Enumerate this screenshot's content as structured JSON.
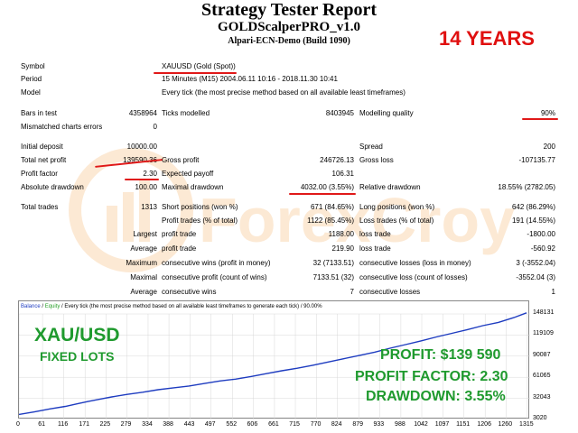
{
  "header": {
    "title": "Strategy Tester Report",
    "subtitle": "GOLDScalperPRO_v1.0",
    "server": "Alpari-ECN-Demo (Build 1090)",
    "badge": "14 YEARS"
  },
  "info": {
    "symbol_label": "Symbol",
    "symbol_value": "XAUUSD (Gold (Spot))",
    "period_label": "Period",
    "period_value": "15 Minutes (M15) 2004.06.11 10:16 - 2018.11.30 10:41",
    "model_label": "Model",
    "model_value": "Every tick (the most precise method based on all available least timeframes)"
  },
  "stats": {
    "bars_label": "Bars in test",
    "bars_value": "4358964",
    "ticks_label": "Ticks modelled",
    "ticks_value": "8403945",
    "quality_label": "Modelling quality",
    "quality_value": "90%",
    "mismatch_label": "Mismatched charts errors",
    "mismatch_value": "0",
    "deposit_label": "Initial deposit",
    "deposit_value": "10000.00",
    "spread_label": "Spread",
    "spread_value": "200",
    "net_label": "Total net profit",
    "net_value": "139590.36",
    "gross_profit_label": "Gross profit",
    "gross_profit_value": "246726.13",
    "gross_loss_label": "Gross loss",
    "gross_loss_value": "-107135.77",
    "pf_label": "Profit factor",
    "pf_value": "2.30",
    "payoff_label": "Expected payoff",
    "payoff_value": "106.31",
    "abs_dd_label": "Absolute drawdown",
    "abs_dd_value": "100.00",
    "max_dd_label": "Maximal drawdown",
    "max_dd_value": "4032.00 (3.55%)",
    "rel_dd_label": "Relative drawdown",
    "rel_dd_value": "18.55% (2782.05)",
    "trades_label": "Total trades",
    "trades_value": "1313",
    "short_label": "Short positions (won %)",
    "short_value": "671 (84.65%)",
    "long_label": "Long positions (won %)",
    "long_value": "642 (86.29%)",
    "pt_label": "Profit trades (% of total)",
    "pt_value": "1122 (85.45%)",
    "lt_label": "Loss trades (% of total)",
    "lt_value": "191 (14.55%)",
    "largest_label": "Largest",
    "avg_label": "Average",
    "maximum_label": "Maximum",
    "maximal_label": "Maximal",
    "lpt_label": "profit trade",
    "lpt_value": "1188.00",
    "llt_label": "loss trade",
    "llt_value": "-1800.00",
    "apt_label": "profit trade",
    "apt_value": "219.90",
    "alt_label": "loss trade",
    "alt_value": "-560.92",
    "mcw_label": "consecutive wins (profit in money)",
    "mcw_value": "32 (7133.51)",
    "mcl_label": "consecutive losses (loss in money)",
    "mcl_value": "3 (-3552.04)",
    "mcp_label": "consecutive profit (count of wins)",
    "mcp_value": "7133.51 (32)",
    "mcll_label": "consecutive loss (count of losses)",
    "mcll_value": "-3552.04 (3)",
    "acw_label": "consecutive wins",
    "acw_value": "7",
    "acl_label": "consecutive losses",
    "acl_value": "1"
  },
  "overlay": {
    "pair": "XAU/USD",
    "lots": "FIXED LOTS",
    "profit_label": "PROFIT:",
    "profit_value": "$139 590",
    "pf_label": "PROFIT FACTOR:",
    "pf_value": "2.30",
    "dd_label": "DRAWDOWN:",
    "dd_value": "3.55%"
  },
  "watermark_text": "ForexCroy",
  "chart_data": {
    "type": "line",
    "legend": {
      "balance": "Balance",
      "sep": " / ",
      "equity": "Equity",
      "rest": " / Every tick (the most precise method based on all available least timeframes to generate each tick) / 90.00%"
    },
    "x_ticks": [
      "0",
      "61",
      "116",
      "171",
      "225",
      "279",
      "334",
      "388",
      "443",
      "497",
      "552",
      "606",
      "661",
      "715",
      "770",
      "824",
      "879",
      "933",
      "988",
      "1042",
      "1097",
      "1151",
      "1206",
      "1260",
      "1315"
    ],
    "y_ticks": [
      "148131",
      "119109",
      "90087",
      "61065",
      "32043",
      "3020"
    ],
    "ylim": [
      3020,
      148131
    ],
    "xlim": [
      0,
      1313
    ],
    "colors": {
      "balance": "#1e3cc0",
      "grid": "#d8d8d8"
    },
    "series": [
      {
        "name": "Balance",
        "x": [
          0,
          40,
          80,
          120,
          150,
          180,
          210,
          240,
          280,
          320,
          360,
          400,
          440,
          480,
          520,
          560,
          600,
          640,
          680,
          720,
          760,
          800,
          840,
          880,
          920,
          960,
          1000,
          1040,
          1080,
          1120,
          1160,
          1200,
          1240,
          1280,
          1313
        ],
        "y": [
          10000,
          13500,
          17500,
          21000,
          24500,
          28000,
          31000,
          34000,
          37500,
          40500,
          44000,
          46500,
          49000,
          52500,
          56000,
          58500,
          62000,
          66000,
          70000,
          73500,
          77500,
          82000,
          86500,
          91000,
          95500,
          101000,
          106000,
          111000,
          116500,
          121500,
          126500,
          132000,
          136500,
          143000,
          149600
        ]
      }
    ]
  }
}
